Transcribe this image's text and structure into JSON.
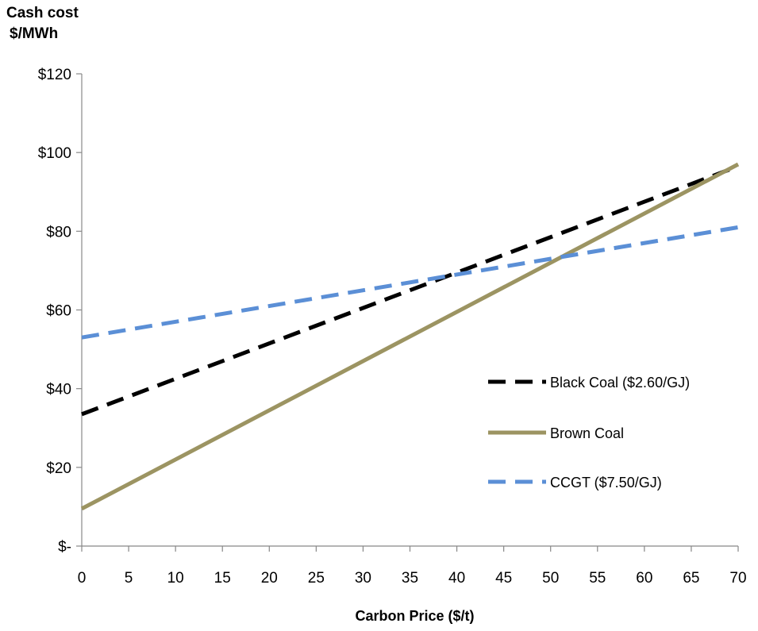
{
  "chart_data": {
    "type": "line",
    "ylabel_line1": "Cash cost",
    "ylabel_line2": "$/MWh",
    "xlabel": "Carbon Price ($/t)",
    "xlim": [
      0,
      70
    ],
    "ylim": [
      0,
      120
    ],
    "x_ticks": [
      "0",
      "5",
      "10",
      "15",
      "20",
      "25",
      "30",
      "35",
      "40",
      "45",
      "50",
      "55",
      "60",
      "65",
      "70"
    ],
    "y_ticks": [
      "$-",
      "$20",
      "$40",
      "$60",
      "$80",
      "$100",
      "$120"
    ],
    "y_tick_values": [
      0,
      20,
      40,
      60,
      80,
      100,
      120
    ],
    "series": [
      {
        "name": "Black Coal ($2.60/GJ)",
        "color": "#000000",
        "style": "dashed",
        "x": [
          0,
          70
        ],
        "y": [
          33.5,
          96.5
        ]
      },
      {
        "name": "Brown Coal",
        "color": "#9c9462",
        "style": "solid",
        "x": [
          0,
          70
        ],
        "y": [
          9.5,
          97
        ]
      },
      {
        "name": "CCGT ($7.50/GJ)",
        "color": "#5b8fd6",
        "style": "dashed",
        "x": [
          0,
          70
        ],
        "y": [
          53,
          81
        ]
      }
    ],
    "legend_position": "right",
    "grid": false
  }
}
